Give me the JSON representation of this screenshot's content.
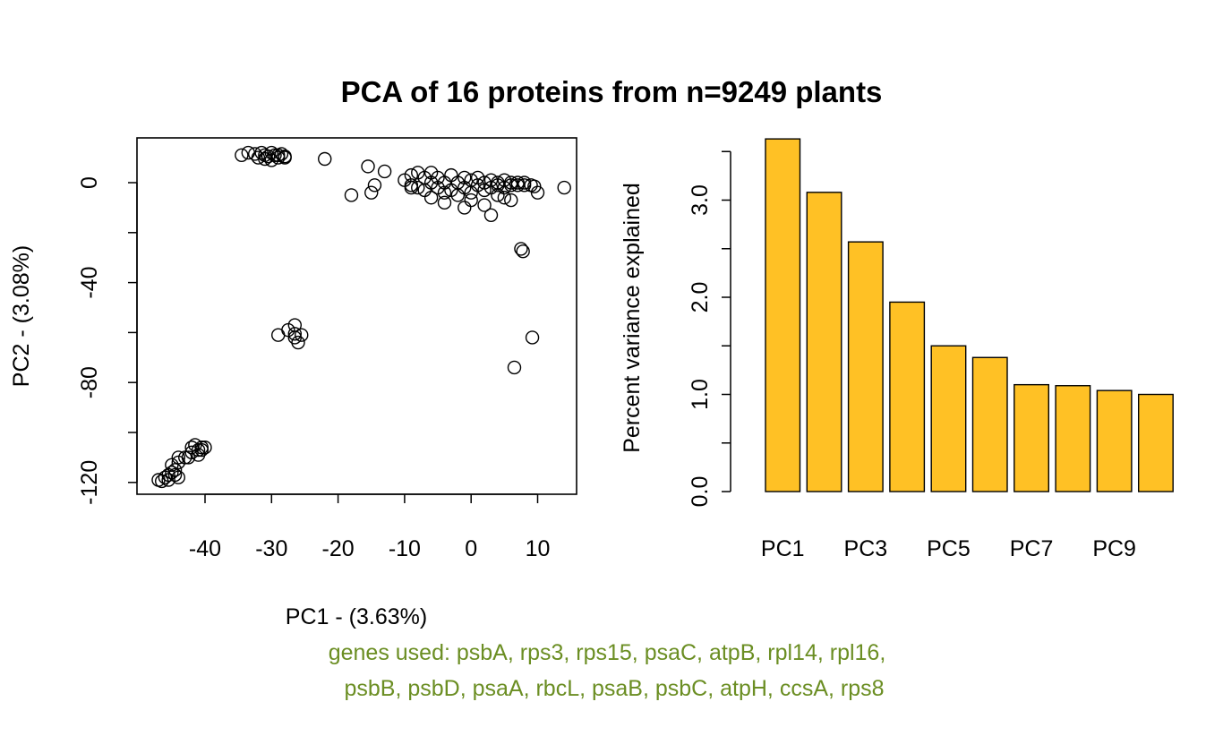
{
  "figure_title": "PCA of 16 proteins from n=9249 plants",
  "footnote": {
    "line1": "genes used: psbA, rps3, rps15, psaC, atpB, rpl14, rpl16,",
    "line2": "psbB, psbD, psaA, rbcL, psaB, psbC, atpH, ccsA, rps8",
    "color": "#6B8E23"
  },
  "chart_data": [
    {
      "type": "scatter",
      "xlabel": "PC1 - (3.63%)",
      "ylabel": "PC2 - (3.08%)",
      "xlim": [
        -50,
        16
      ],
      "ylim": [
        -125,
        18
      ],
      "x_ticks": [
        -40,
        -30,
        -20,
        -10,
        0,
        10
      ],
      "x_tick_labels": [
        "-40",
        "-30",
        "-20",
        "-10",
        "0",
        "10"
      ],
      "y_ticks": [
        -120,
        -80,
        -40,
        0
      ],
      "y_tick_labels": [
        "-120",
        "-80",
        "-40",
        "0"
      ],
      "y_minor_ticks": [
        -100,
        -60,
        -20
      ],
      "marker": "open-circle",
      "points": [
        [
          -34.5,
          11
        ],
        [
          -33.5,
          12
        ],
        [
          -32.5,
          11.5
        ],
        [
          -32,
          10
        ],
        [
          -31.5,
          12
        ],
        [
          -31,
          11
        ],
        [
          -30.5,
          10.5
        ],
        [
          -30,
          12
        ],
        [
          -29.5,
          11
        ],
        [
          -29,
          10
        ],
        [
          -28.5,
          11.5
        ],
        [
          -28,
          10.5
        ],
        [
          -31,
          9.5
        ],
        [
          -30,
          9
        ],
        [
          -29,
          11
        ],
        [
          -28,
          10
        ],
        [
          -22,
          9.5
        ],
        [
          -18,
          -5
        ],
        [
          -15.5,
          6.5
        ],
        [
          -15,
          -4
        ],
        [
          -14.5,
          -1
        ],
        [
          -13,
          4.5
        ],
        [
          -10,
          1
        ],
        [
          -9,
          3
        ],
        [
          -9,
          -1
        ],
        [
          -8,
          4
        ],
        [
          -8,
          -2
        ],
        [
          -7,
          2
        ],
        [
          -7,
          -3
        ],
        [
          -6,
          0
        ],
        [
          -6,
          4
        ],
        [
          -5,
          -2
        ],
        [
          -5,
          2
        ],
        [
          -4,
          0
        ],
        [
          -4,
          -4
        ],
        [
          -3,
          3
        ],
        [
          -3,
          -3
        ],
        [
          -2,
          0
        ],
        [
          -2,
          -5
        ],
        [
          -1,
          2
        ],
        [
          -1,
          -2
        ],
        [
          0,
          1
        ],
        [
          0,
          -4
        ],
        [
          1,
          -1
        ],
        [
          1,
          2
        ],
        [
          2,
          -3
        ],
        [
          2,
          0
        ],
        [
          3,
          1
        ],
        [
          3,
          -2
        ],
        [
          4,
          0
        ],
        [
          4,
          -1
        ],
        [
          5,
          1
        ],
        [
          5,
          -2
        ],
        [
          6,
          0
        ],
        [
          6,
          -1
        ],
        [
          7,
          0
        ],
        [
          7,
          -1
        ],
        [
          8,
          -1
        ],
        [
          8,
          0
        ],
        [
          9,
          -1
        ],
        [
          9.5,
          -1.5
        ],
        [
          10,
          -4
        ],
        [
          -4,
          -8
        ],
        [
          -1,
          -10
        ],
        [
          2,
          -9
        ],
        [
          3,
          -13
        ],
        [
          5,
          -6
        ],
        [
          6,
          -7
        ],
        [
          -6,
          -6
        ],
        [
          -9,
          -2
        ],
        [
          0,
          -7
        ],
        [
          4,
          -5
        ],
        [
          14,
          -2
        ],
        [
          7.5,
          -26.5
        ],
        [
          7.8,
          -27.5
        ],
        [
          -29,
          -61
        ],
        [
          -27.5,
          -59
        ],
        [
          -26.5,
          -57
        ],
        [
          -26.5,
          -62
        ],
        [
          -26,
          -64
        ],
        [
          -25.5,
          -61
        ],
        [
          -26.5,
          -60.5
        ],
        [
          9.2,
          -62
        ],
        [
          6.5,
          -74
        ],
        [
          -47,
          -119
        ],
        [
          -46.5,
          -119.5
        ],
        [
          -46,
          -118
        ],
        [
          -45.5,
          -117
        ],
        [
          -45,
          -116
        ],
        [
          -44.5,
          -115
        ],
        [
          -45,
          -113
        ],
        [
          -44,
          -112
        ],
        [
          -44,
          -118
        ],
        [
          -45.5,
          -119
        ],
        [
          -44.5,
          -117
        ],
        [
          -44,
          -110
        ],
        [
          -43,
          -110
        ],
        [
          -42.5,
          -110
        ],
        [
          -42,
          -108
        ],
        [
          -42,
          -106
        ],
        [
          -41.5,
          -105
        ],
        [
          -41,
          -107
        ],
        [
          -41,
          -109
        ],
        [
          -40.5,
          -106
        ],
        [
          -40,
          -106
        ],
        [
          -40.5,
          -107
        ]
      ]
    },
    {
      "type": "bar",
      "ylabel": "Percent variance explained",
      "xlabel": "",
      "ylim": [
        0,
        3.65
      ],
      "y_ticks": [
        0,
        0.5,
        1,
        1.5,
        2,
        2.5,
        3,
        3.5
      ],
      "y_tick_labels": [
        "0.0",
        "",
        "1.0",
        "",
        "2.0",
        "",
        "3.0",
        ""
      ],
      "categories": [
        "PC1",
        "PC2",
        "PC3",
        "PC4",
        "PC5",
        "PC6",
        "PC7",
        "PC8",
        "PC9",
        "PC10"
      ],
      "category_labels": [
        "PC1",
        "",
        "PC3",
        "",
        "PC5",
        "",
        "PC7",
        "",
        "PC9",
        ""
      ],
      "values": [
        3.63,
        3.08,
        2.57,
        1.95,
        1.5,
        1.38,
        1.1,
        1.09,
        1.04,
        1.0
      ],
      "bar_color": "#FFC125"
    }
  ]
}
